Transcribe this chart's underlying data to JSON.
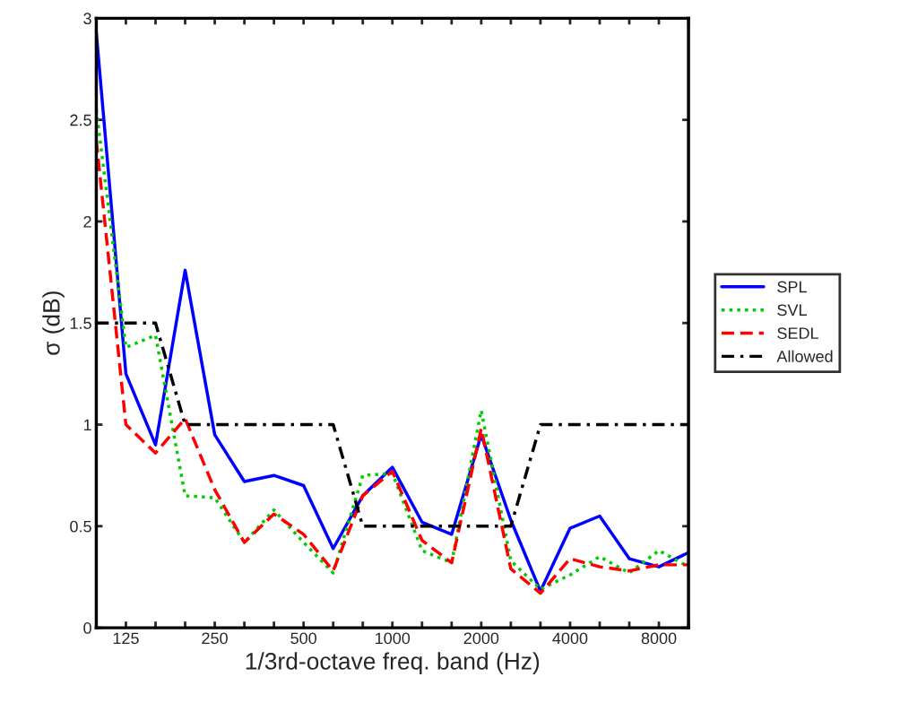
{
  "chart_data": {
    "type": "line",
    "xlabel": "1/3rd-octave freq. band (Hz)",
    "ylabel": "σ (dB)",
    "categories": [
      null,
      "125",
      null,
      null,
      "250",
      null,
      null,
      "500",
      null,
      null,
      "1000",
      null,
      null,
      "2000",
      null,
      null,
      "4000",
      null,
      null,
      "8000",
      null
    ],
    "ylim": [
      0,
      3
    ],
    "yticks": [
      0,
      0.5,
      1,
      1.5,
      2,
      2.5,
      3
    ],
    "grid": false,
    "legend": "right",
    "marker": "none",
    "series": [
      {
        "name": "SPL",
        "color": "#0000ff",
        "line_style": "solid",
        "values": [
          2.93,
          1.25,
          0.9,
          1.76,
          0.95,
          0.72,
          0.75,
          0.7,
          0.39,
          0.65,
          0.79,
          0.52,
          0.46,
          0.95,
          0.53,
          0.18,
          0.49,
          0.55,
          0.34,
          0.3,
          0.37
        ]
      },
      {
        "name": "SVL",
        "color": "#00cc00",
        "line_style": "dotted",
        "values": [
          2.55,
          1.38,
          1.44,
          0.65,
          0.64,
          0.42,
          0.58,
          0.42,
          0.27,
          0.75,
          0.76,
          0.38,
          0.32,
          1.07,
          0.33,
          0.19,
          0.26,
          0.35,
          0.27,
          0.38,
          0.3
        ]
      },
      {
        "name": "SEDL",
        "color": "#ff0000",
        "line_style": "dashed",
        "values": [
          2.4,
          1.0,
          0.86,
          1.03,
          0.68,
          0.42,
          0.56,
          0.46,
          0.28,
          0.65,
          0.77,
          0.43,
          0.32,
          0.98,
          0.29,
          0.17,
          0.34,
          0.3,
          0.28,
          0.31,
          0.31
        ]
      },
      {
        "name": "Allowed",
        "color": "#000000",
        "line_style": "dashdot",
        "values": [
          1.5,
          1.5,
          1.5,
          1.0,
          1.0,
          1.0,
          1.0,
          1.0,
          1.0,
          0.5,
          0.5,
          0.5,
          0.5,
          0.5,
          0.5,
          1.0,
          1.0,
          1.0,
          1.0,
          1.0,
          1.0
        ]
      }
    ]
  }
}
